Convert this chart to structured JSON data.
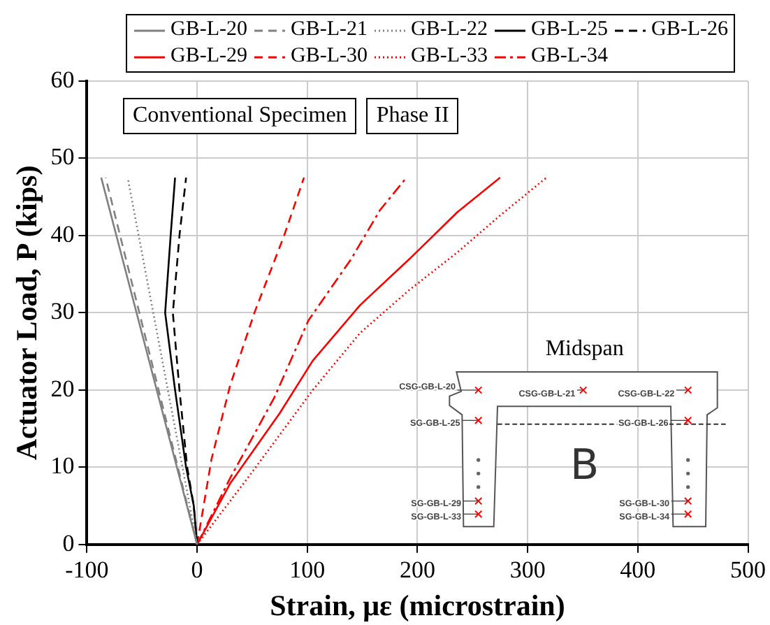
{
  "chart_data": {
    "type": "line",
    "xlabel": "Strain, με (microstrain)",
    "ylabel": "Actuator Load, P (kips)",
    "xlim": [
      -100,
      500
    ],
    "xticks": [
      -100,
      0,
      100,
      200,
      300,
      400,
      500
    ],
    "ylim": [
      0,
      60
    ],
    "yticks": [
      0,
      10,
      20,
      30,
      40,
      50,
      60
    ],
    "grid": true,
    "legend": "top",
    "marker": "none",
    "annotations": [
      "Conventional Specimen",
      "Phase II",
      "Midspan",
      "B",
      "CSG-GB-L-20",
      "CSG-GB-L-21",
      "CSG-GB-L-22",
      "SG-GB-L-25",
      "SG-GB-L-26",
      "SG-GB-L-29",
      "SG-GB-L-30",
      "SG-GB-L-33",
      "SG-GB-L-34"
    ],
    "series": [
      {
        "name": "GB-L-20",
        "color": "#808080",
        "line_style": "solid",
        "x": [
          0,
          -87
        ],
        "values": [
          0,
          47.5
        ]
      },
      {
        "name": "GB-L-21",
        "color": "#808080",
        "line_style": "dashed",
        "x": [
          0,
          -83
        ],
        "values": [
          0,
          47.5
        ]
      },
      {
        "name": "GB-L-22",
        "color": "#808080",
        "line_style": "dotted",
        "x": [
          0,
          -63
        ],
        "values": [
          0,
          47.5
        ]
      },
      {
        "name": "GB-L-25",
        "color": "#000000",
        "line_style": "solid",
        "x": [
          0,
          -3,
          -10,
          -20,
          -29,
          -24,
          -20
        ],
        "values": [
          0,
          5,
          10,
          20,
          30,
          40,
          47.5
        ]
      },
      {
        "name": "GB-L-26",
        "color": "#000000",
        "line_style": "dashed",
        "x": [
          0,
          -3,
          -9,
          -16,
          -22,
          -16,
          -10
        ],
        "values": [
          0,
          5,
          10,
          20,
          30,
          40,
          47.5
        ]
      },
      {
        "name": "GB-L-29",
        "color": "#ff0000",
        "line_style": "solid",
        "x": [
          0,
          30,
          75,
          105,
          148,
          193,
          236,
          275
        ],
        "values": [
          0,
          7.9,
          17,
          23.8,
          31,
          37,
          43,
          47.5
        ]
      },
      {
        "name": "GB-L-30",
        "color": "#ff0000",
        "line_style": "dashed",
        "x": [
          0,
          13,
          30,
          52,
          79,
          97
        ],
        "values": [
          0,
          11,
          20.6,
          30,
          40,
          47.5
        ]
      },
      {
        "name": "GB-L-33",
        "color": "#ff0000",
        "line_style": "dotted",
        "x": [
          0,
          48,
          105,
          148,
          193,
          236,
          275,
          317
        ],
        "values": [
          0,
          9,
          20,
          27.4,
          33,
          37.8,
          42.6,
          47.5
        ]
      },
      {
        "name": "GB-L-34",
        "color": "#ff0000",
        "line_style": "dashdot",
        "x": [
          0,
          30,
          70,
          101,
          140,
          166,
          190
        ],
        "values": [
          0,
          8.6,
          19,
          29,
          37,
          43.3,
          47.5
        ]
      }
    ]
  }
}
